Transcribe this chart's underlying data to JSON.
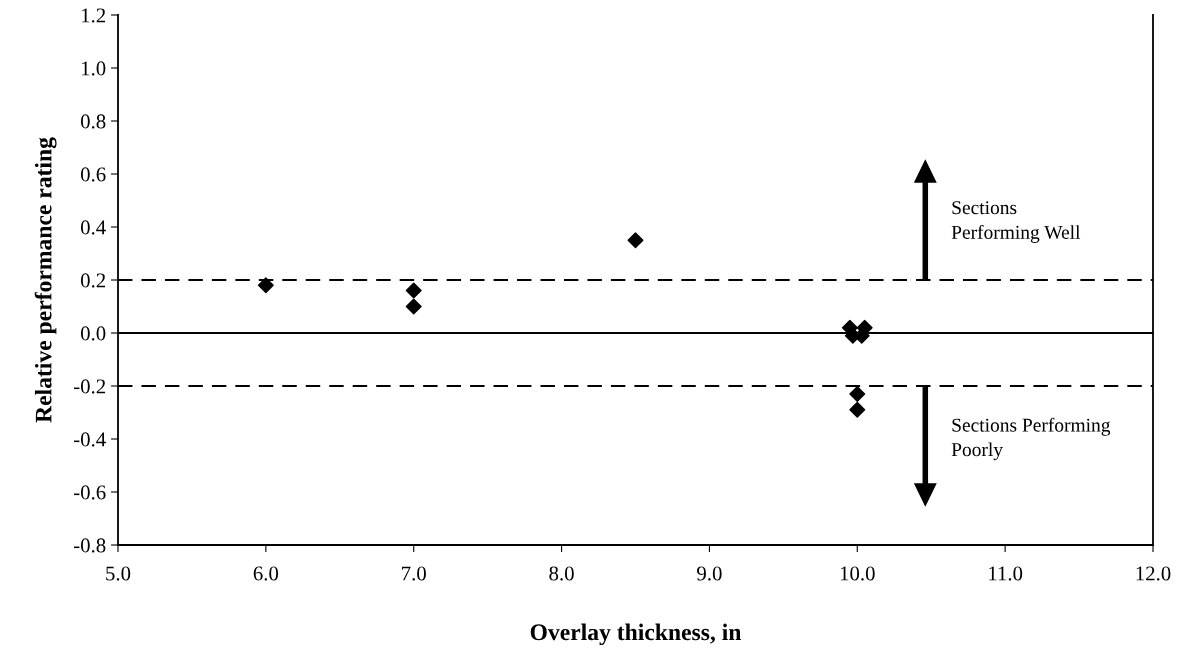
{
  "chart_data": {
    "type": "scatter",
    "xlabel": "Overlay thickness, in",
    "ylabel": "Relative performance rating",
    "x": [
      6.0,
      7.0,
      7.0,
      8.5,
      9.95,
      9.97,
      10.03,
      10.05,
      10.0,
      10.0
    ],
    "values": [
      0.18,
      0.16,
      0.1,
      0.35,
      0.02,
      -0.01,
      -0.01,
      0.02,
      -0.23,
      -0.29
    ],
    "color": "#000000",
    "marker": "diamond",
    "grid": false,
    "legend": false,
    "xlim": [
      5.0,
      12.0
    ],
    "xticks": [
      {
        "value": 5,
        "label": "5.0"
      },
      {
        "value": 6,
        "label": "6.0"
      },
      {
        "value": 7,
        "label": "7.0"
      },
      {
        "value": 8,
        "label": "8.0"
      },
      {
        "value": 9,
        "label": "9.0"
      },
      {
        "value": 10,
        "label": "10.0"
      },
      {
        "value": 11,
        "label": "11.0"
      },
      {
        "value": 12,
        "label": "12.0"
      }
    ],
    "ylim": [
      -0.8,
      1.2
    ],
    "yticks": [
      {
        "value": -0.8,
        "label": "-0.8"
      },
      {
        "value": -0.6,
        "label": "-0.6"
      },
      {
        "value": -0.4,
        "label": "-0.4"
      },
      {
        "value": -0.2,
        "label": "-0.2"
      },
      {
        "value": 0,
        "label": "0.0"
      },
      {
        "value": 0.2,
        "label": "0.2"
      },
      {
        "value": 0.4,
        "label": "0.4"
      },
      {
        "value": 0.6,
        "label": "0.6"
      },
      {
        "value": 0.8,
        "label": "0.8"
      },
      {
        "value": 1.0,
        "label": "1.0"
      },
      {
        "value": 1.2,
        "label": "1.2"
      }
    ],
    "ref_lines": [
      {
        "axis": "y",
        "value": 0,
        "line_style": "solid",
        "color": "#000000"
      },
      {
        "axis": "y",
        "value": 0.2,
        "line_style": "dashed",
        "color": "#000000"
      },
      {
        "axis": "y",
        "value": -0.2,
        "line_style": "dashed",
        "color": "#000000"
      }
    ],
    "annotations": [
      "Sections\nPerforming Well",
      "Sections Performing\nPoorly"
    ]
  }
}
